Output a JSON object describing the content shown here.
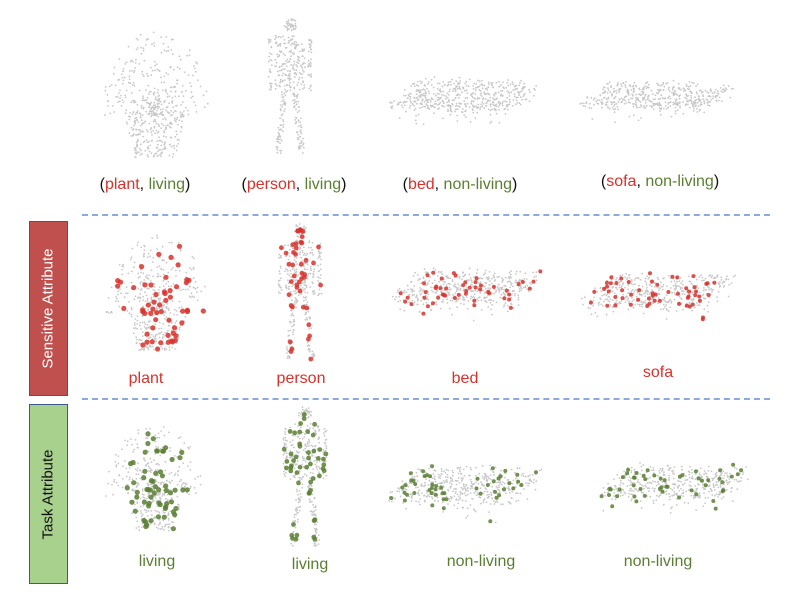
{
  "top_row": [
    {
      "object": "plant",
      "sep": ", ",
      "category": "living"
    },
    {
      "object": "person",
      "sep": ", ",
      "category": "living"
    },
    {
      "object": "bed",
      "sep": ", ",
      "category": "non-living"
    },
    {
      "object": "sofa",
      "sep": ", ",
      "category": "non-living"
    }
  ],
  "sensitive_row": {
    "title": "Sensitive Attribute",
    "labels": [
      "plant",
      "person",
      "bed",
      "sofa"
    ]
  },
  "task_row": {
    "title": "Task Attribute",
    "labels": [
      "living",
      "living",
      "non-living",
      "non-living"
    ]
  },
  "colors": {
    "sensitive": "#d9312b",
    "task": "#5a7f32",
    "cloud": "#c8c8c8",
    "divider": "#8eaadb"
  }
}
